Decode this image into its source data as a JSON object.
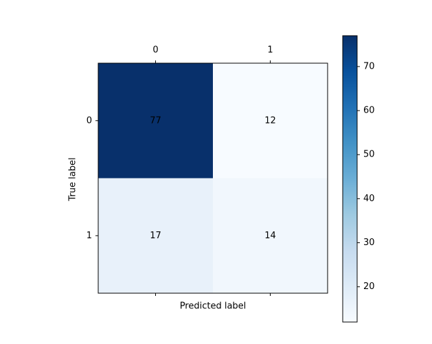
{
  "chart_data": {
    "type": "heatmap",
    "x_label": "Predicted label",
    "y_label": "True label",
    "x_categories": [
      "0",
      "1"
    ],
    "y_categories": [
      "0",
      "1"
    ],
    "values": [
      [
        77,
        12
      ],
      [
        17,
        14
      ]
    ],
    "colormap": "Blues",
    "clim": [
      12,
      77
    ],
    "colorbar_ticks": [
      20,
      30,
      40,
      50,
      60,
      70
    ]
  }
}
